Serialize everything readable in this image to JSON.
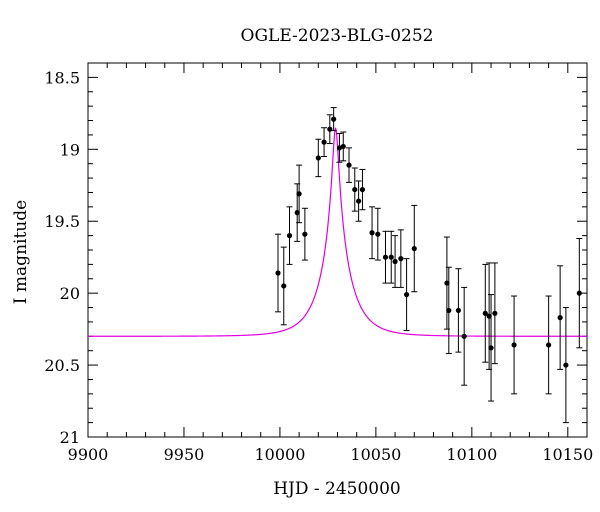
{
  "chart_data": {
    "type": "scatter",
    "title": "OGLE-2023-BLG-0252",
    "xlabel": "HJD - 2450000",
    "ylabel": "I magnitude",
    "xlim": [
      9900,
      10160
    ],
    "ylim": [
      21,
      18.4
    ],
    "y_inverted": true,
    "x_ticks": [
      9900,
      9950,
      10000,
      10050,
      10100,
      10150
    ],
    "y_ticks": [
      18.5,
      19,
      19.5,
      20,
      20.5,
      21
    ],
    "x_tick_labels": [
      "9900",
      "9950",
      "10000",
      "10050",
      "10100",
      "10150"
    ],
    "y_tick_labels": [
      "18.5",
      "19",
      "19.5",
      "20",
      "20.5",
      "21"
    ],
    "grid": false,
    "series": [
      {
        "kind": "points_with_errorbars",
        "color": "#000000",
        "points": [
          {
            "x": 9999,
            "y": 19.86,
            "err": 0.27
          },
          {
            "x": 10002,
            "y": 19.95,
            "err": 0.27
          },
          {
            "x": 10005,
            "y": 19.6,
            "err": 0.2
          },
          {
            "x": 10009,
            "y": 19.44,
            "err": 0.2
          },
          {
            "x": 10010,
            "y": 19.31,
            "err": 0.2
          },
          {
            "x": 10013,
            "y": 19.59,
            "err": 0.18
          },
          {
            "x": 10020,
            "y": 19.06,
            "err": 0.13
          },
          {
            "x": 10023,
            "y": 18.95,
            "err": 0.1
          },
          {
            "x": 10026,
            "y": 18.86,
            "err": 0.1
          },
          {
            "x": 10028,
            "y": 18.79,
            "err": 0.08
          },
          {
            "x": 10031,
            "y": 18.99,
            "err": 0.1
          },
          {
            "x": 10033,
            "y": 18.98,
            "err": 0.1
          },
          {
            "x": 10036,
            "y": 19.11,
            "err": 0.12
          },
          {
            "x": 10039,
            "y": 19.28,
            "err": 0.15
          },
          {
            "x": 10041,
            "y": 19.36,
            "err": 0.14
          },
          {
            "x": 10043,
            "y": 19.28,
            "err": 0.14
          },
          {
            "x": 10048,
            "y": 19.58,
            "err": 0.18
          },
          {
            "x": 10051,
            "y": 19.59,
            "err": 0.18
          },
          {
            "x": 10055,
            "y": 19.75,
            "err": 0.18
          },
          {
            "x": 10058,
            "y": 19.75,
            "err": 0.18
          },
          {
            "x": 10060,
            "y": 19.78,
            "err": 0.18
          },
          {
            "x": 10063,
            "y": 19.76,
            "err": 0.2
          },
          {
            "x": 10066,
            "y": 20.01,
            "err": 0.25
          },
          {
            "x": 10070,
            "y": 19.69,
            "err": 0.3
          },
          {
            "x": 10087,
            "y": 19.93,
            "err": 0.32
          },
          {
            "x": 10088,
            "y": 20.12,
            "err": 0.3
          },
          {
            "x": 10093,
            "y": 20.12,
            "err": 0.29
          },
          {
            "x": 10096,
            "y": 20.3,
            "err": 0.34
          },
          {
            "x": 10107,
            "y": 20.14,
            "err": 0.34
          },
          {
            "x": 10110,
            "y": 20.38,
            "err": 0.37
          },
          {
            "x": 10109,
            "y": 20.16,
            "err": 0.37
          },
          {
            "x": 10112,
            "y": 20.14,
            "err": 0.35
          },
          {
            "x": 10122,
            "y": 20.36,
            "err": 0.34
          },
          {
            "x": 10140,
            "y": 20.36,
            "err": 0.34
          },
          {
            "x": 10146,
            "y": 20.17,
            "err": 0.36
          },
          {
            "x": 10149,
            "y": 20.5,
            "err": 0.4
          },
          {
            "x": 10156,
            "y": 20.0,
            "err": 0.38
          }
        ]
      },
      {
        "kind": "model_curve",
        "color": "#e000e0",
        "model": {
          "t0": 10029,
          "tE": 14,
          "u0": 0.1,
          "baseline": 20.3,
          "peak": 18.85
        }
      }
    ]
  }
}
